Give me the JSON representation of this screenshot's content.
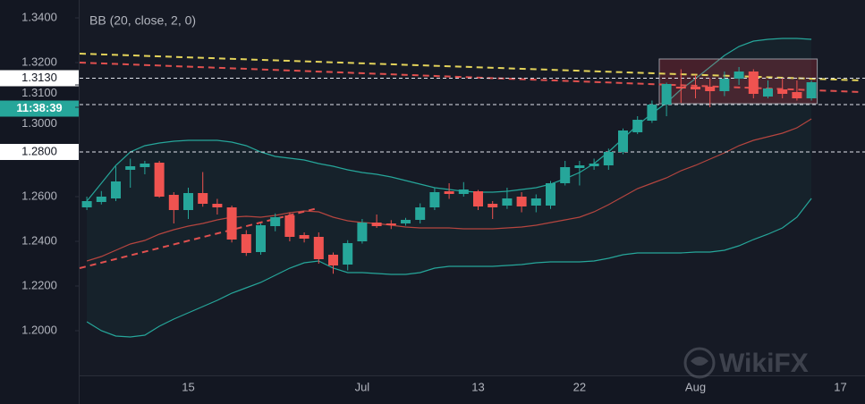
{
  "chart_data": {
    "type": "candlestick",
    "legend_text": "BB (20, close, 2, 0)",
    "watermark": "WikiFX",
    "categories": [
      null,
      null,
      null,
      null,
      null,
      null,
      null,
      "15",
      null,
      null,
      null,
      null,
      null,
      null,
      null,
      null,
      null,
      null,
      null,
      "Jul",
      null,
      null,
      null,
      null,
      null,
      null,
      null,
      "13",
      null,
      null,
      null,
      null,
      null,
      null,
      "22",
      null,
      null,
      null,
      null,
      null,
      null,
      null,
      "Aug",
      null,
      null,
      null,
      null,
      null,
      null,
      null,
      null,
      null,
      "17"
    ],
    "open": [
      1.2552,
      1.2576,
      1.2592,
      1.272,
      1.2732,
      1.2752,
      1.2608,
      1.254,
      1.2616,
      1.2568,
      1.2552,
      1.2432,
      1.2352,
      1.2468,
      1.2516,
      1.2428,
      1.242,
      1.234,
      1.2296,
      1.24,
      1.2484,
      1.248,
      1.248,
      1.2496,
      1.2552,
      1.2624,
      1.2612,
      1.2624,
      1.2568,
      1.256,
      1.26,
      1.256,
      1.256,
      1.266,
      1.2728,
      1.2736,
      1.274,
      1.28,
      1.2888,
      1.294,
      1.3012,
      1.3092,
      1.3092,
      1.3092,
      1.3072,
      1.3128,
      1.316,
      1.3048,
      1.308,
      1.3068,
      1.304,
      null,
      null
    ],
    "high": [
      1.26,
      1.2625,
      1.2735,
      1.277,
      1.276,
      1.276,
      1.262,
      1.264,
      1.271,
      1.259,
      1.256,
      1.245,
      1.248,
      1.2525,
      1.253,
      1.244,
      1.244,
      1.235,
      1.2405,
      1.25,
      1.252,
      1.2495,
      1.2505,
      1.257,
      1.264,
      1.266,
      1.2665,
      1.263,
      1.258,
      1.264,
      1.262,
      1.261,
      1.267,
      1.276,
      1.276,
      1.277,
      1.2815,
      1.2905,
      1.296,
      1.303,
      1.311,
      1.317,
      1.3145,
      1.313,
      1.316,
      1.318,
      1.317,
      1.312,
      1.313,
      1.312,
      1.312,
      null,
      null
    ],
    "low": [
      1.254,
      1.2565,
      1.258,
      1.264,
      1.27,
      1.2595,
      1.248,
      1.25,
      1.2555,
      1.252,
      1.2395,
      1.2335,
      1.234,
      1.2445,
      1.24,
      1.2395,
      1.23,
      1.2255,
      1.227,
      1.239,
      1.246,
      1.2455,
      1.247,
      1.248,
      1.254,
      1.259,
      1.26,
      1.254,
      1.25,
      1.2545,
      1.253,
      1.253,
      1.2545,
      1.265,
      1.265,
      1.272,
      1.272,
      1.279,
      1.288,
      1.293,
      1.296,
      1.302,
      1.304,
      1.3,
      1.305,
      1.31,
      1.304,
      1.304,
      1.304,
      1.303,
      1.303,
      null,
      null
    ],
    "close": [
      1.258,
      1.26,
      1.2668,
      1.2736,
      1.2748,
      1.26,
      1.254,
      1.2616,
      1.2568,
      1.2552,
      1.2408,
      1.2348,
      1.2472,
      1.2508,
      1.242,
      1.2412,
      1.232,
      1.2292,
      1.2392,
      1.2484,
      1.2468,
      1.2472,
      1.2496,
      1.2552,
      1.262,
      1.2612,
      1.2632,
      1.2556,
      1.2552,
      1.2592,
      1.2556,
      1.2592,
      1.266,
      1.2732,
      1.274,
      1.2748,
      1.28,
      1.2896,
      1.2944,
      1.3012,
      1.3104,
      1.3084,
      1.308,
      1.3072,
      1.3128,
      1.316,
      1.306,
      1.3084,
      1.306,
      1.304,
      1.3112,
      null,
      null
    ],
    "up_color": "#26a69a",
    "down_color": "#ef5350",
    "bollinger": {
      "upper": [
        1.258,
        1.266,
        1.274,
        1.28,
        1.2828,
        1.284,
        1.2848,
        1.2852,
        1.2852,
        1.2852,
        1.2844,
        1.2828,
        1.28,
        1.278,
        1.2772,
        1.2764,
        1.2748,
        1.2736,
        1.272,
        1.2708,
        1.27,
        1.2688,
        1.2672,
        1.2656,
        1.264,
        1.2632,
        1.2624,
        1.262,
        1.262,
        1.2624,
        1.2632,
        1.264,
        1.2656,
        1.268,
        1.2708,
        1.2748,
        1.28,
        1.286,
        1.292,
        1.2972,
        1.302,
        1.308,
        1.3128,
        1.318,
        1.3232,
        1.3272,
        1.3296,
        1.3304,
        1.3308,
        1.3308,
        1.3304,
        null,
        null
      ],
      "basis": [
        1.2312,
        1.2332,
        1.236,
        1.2388,
        1.2404,
        1.2432,
        1.2452,
        1.2468,
        1.248,
        1.2496,
        1.2508,
        1.2512,
        1.2508,
        1.2516,
        1.2528,
        1.2536,
        1.2532,
        1.2508,
        1.2492,
        1.2484,
        1.248,
        1.2472,
        1.2464,
        1.246,
        1.246,
        1.246,
        1.2456,
        1.2456,
        1.2456,
        1.246,
        1.2464,
        1.2472,
        1.2484,
        1.2496,
        1.2508,
        1.2532,
        1.2564,
        1.26,
        1.2636,
        1.266,
        1.2684,
        1.2716,
        1.274,
        1.2768,
        1.2796,
        1.2828,
        1.2852,
        1.2868,
        1.2884,
        1.2908,
        1.2948,
        null,
        null
      ],
      "lower": [
        1.204,
        1.2,
        1.1976,
        1.1972,
        1.198,
        1.202,
        1.2052,
        1.208,
        1.2108,
        1.2136,
        1.2168,
        1.2192,
        1.2216,
        1.2248,
        1.228,
        1.2304,
        1.2312,
        1.228,
        1.226,
        1.226,
        1.2256,
        1.2252,
        1.2252,
        1.226,
        1.228,
        1.2288,
        1.2288,
        1.2288,
        1.2288,
        1.2292,
        1.2296,
        1.2304,
        1.2308,
        1.2308,
        1.2308,
        1.2312,
        1.2324,
        1.234,
        1.2348,
        1.2348,
        1.2348,
        1.2348,
        1.2352,
        1.2352,
        1.236,
        1.238,
        1.2408,
        1.2432,
        1.246,
        1.2508,
        1.2592,
        null,
        null
      ],
      "band_color": "#26a69a",
      "basis_color": "#b5453f"
    },
    "trend_lines": [
      {
        "color": "#e0504f",
        "x": [
          -0.5,
          53.5
        ],
        "y": [
          1.32,
          1.3068
        ]
      },
      {
        "color": "#e3d35a",
        "x": [
          -0.5,
          53.5
        ],
        "y": [
          1.324,
          1.312
        ]
      },
      {
        "color": "#e0504f",
        "x": [
          -0.5,
          15.9
        ],
        "y": [
          1.228,
          1.2548
        ]
      }
    ],
    "price_lines": [
      {
        "value": 1.313,
        "label": "1.3130"
      },
      {
        "value": 1.28,
        "label": "1.2800"
      }
    ],
    "countdown": {
      "value": 1.3012,
      "label": "11:38:39"
    },
    "range_box": {
      "x": [
        40,
        50.9
      ],
      "y": [
        1.3016,
        1.3216
      ]
    },
    "ylim": [
      1.18,
      1.348
    ],
    "yticks": [
      {
        "value": 1.34,
        "label": "1.3400"
      },
      {
        "value": 1.32,
        "label": "1.3200"
      },
      {
        "value": 1.31,
        "label": "1.3100"
      },
      {
        "value": 1.3,
        "label": "1.3000"
      },
      {
        "value": 1.26,
        "label": "1.2600"
      },
      {
        "value": 1.24,
        "label": "1.2400"
      },
      {
        "value": 1.22,
        "label": "1.2200"
      },
      {
        "value": 1.2,
        "label": "1.2000"
      }
    ]
  }
}
